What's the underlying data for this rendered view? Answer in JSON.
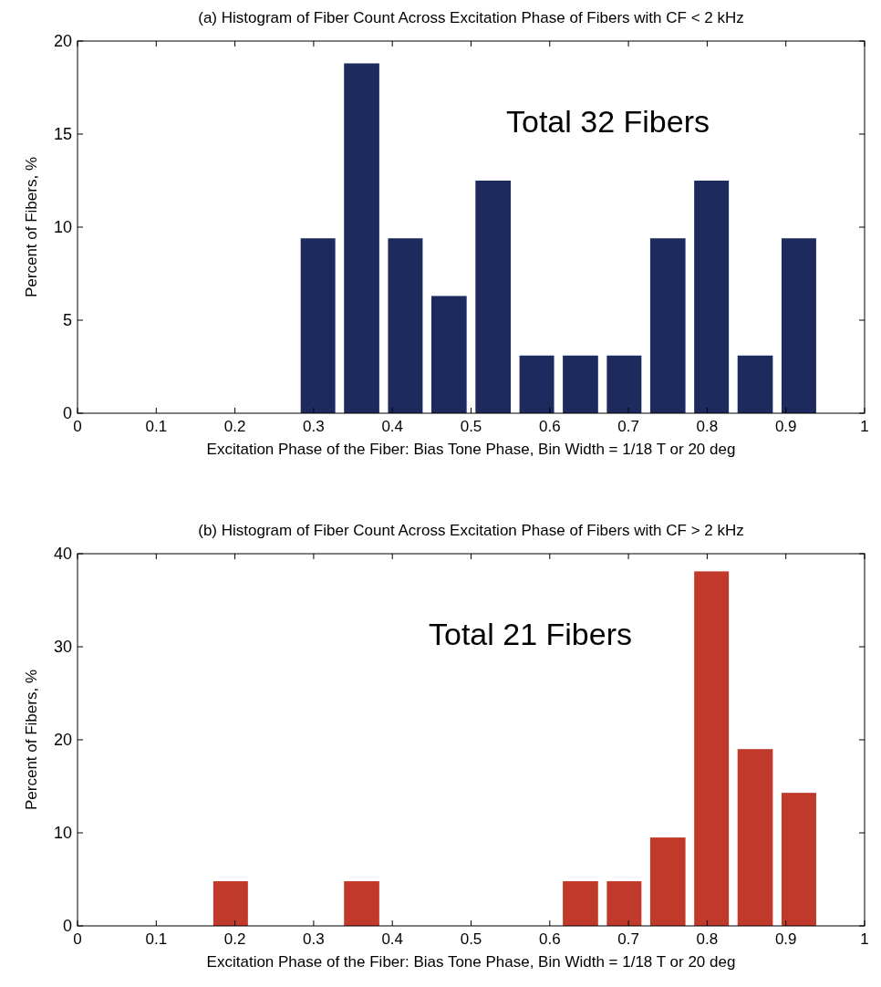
{
  "chart_data": [
    {
      "type": "histogram",
      "title": "(a) Histogram of Fiber Count Across Excitation Phase of Fibers with CF < 2 kHz",
      "xlabel": "Excitation Phase of the Fiber: Bias Tone Phase, Bin Width = 1/18 T or 20 deg",
      "ylabel": "Percent of Fibers, %",
      "annotations": [
        "Total 32 Fibers"
      ],
      "color": "#1c2a5e",
      "bins": [
        0.278,
        0.333,
        0.389,
        0.444,
        0.5,
        0.556,
        0.611,
        0.667,
        0.722,
        0.778,
        0.833,
        0.889,
        0.944
      ],
      "values": [
        9.4,
        18.8,
        9.4,
        6.3,
        12.5,
        3.1,
        3.1,
        3.1,
        9.4,
        12.5,
        3.1,
        9.4
      ],
      "xlim": [
        0,
        1
      ],
      "xticks": [
        0,
        0.1,
        0.2,
        0.3,
        0.4,
        0.5,
        0.6,
        0.7,
        0.8,
        0.9,
        1
      ],
      "ylim": [
        0,
        20
      ],
      "yticks": [
        0,
        5,
        10,
        15,
        20
      ]
    },
    {
      "type": "histogram",
      "title": "(b) Histogram of Fiber Count Across Excitation Phase of Fibers with CF > 2 kHz",
      "xlabel": "Excitation Phase of the Fiber: Bias Tone Phase, Bin Width = 1/18 T or 20 deg",
      "ylabel": "Percent of Fibers, %",
      "annotations": [
        "Total 21 Fibers"
      ],
      "color": "#c0392a",
      "bins": [
        0.167,
        0.222,
        0.333,
        0.389,
        0.611,
        0.667,
        0.722,
        0.778,
        0.833,
        0.889,
        0.944
      ],
      "values": [
        4.8,
        0,
        4.8,
        0,
        4.8,
        4.8,
        9.5,
        38.1,
        19,
        14.3
      ],
      "xlim": [
        0,
        1
      ],
      "xticks": [
        0,
        0.1,
        0.2,
        0.3,
        0.4,
        0.5,
        0.6,
        0.7,
        0.8,
        0.9,
        1
      ],
      "ylim": [
        0,
        40
      ],
      "yticks": [
        0,
        10,
        20,
        30,
        40
      ]
    }
  ]
}
